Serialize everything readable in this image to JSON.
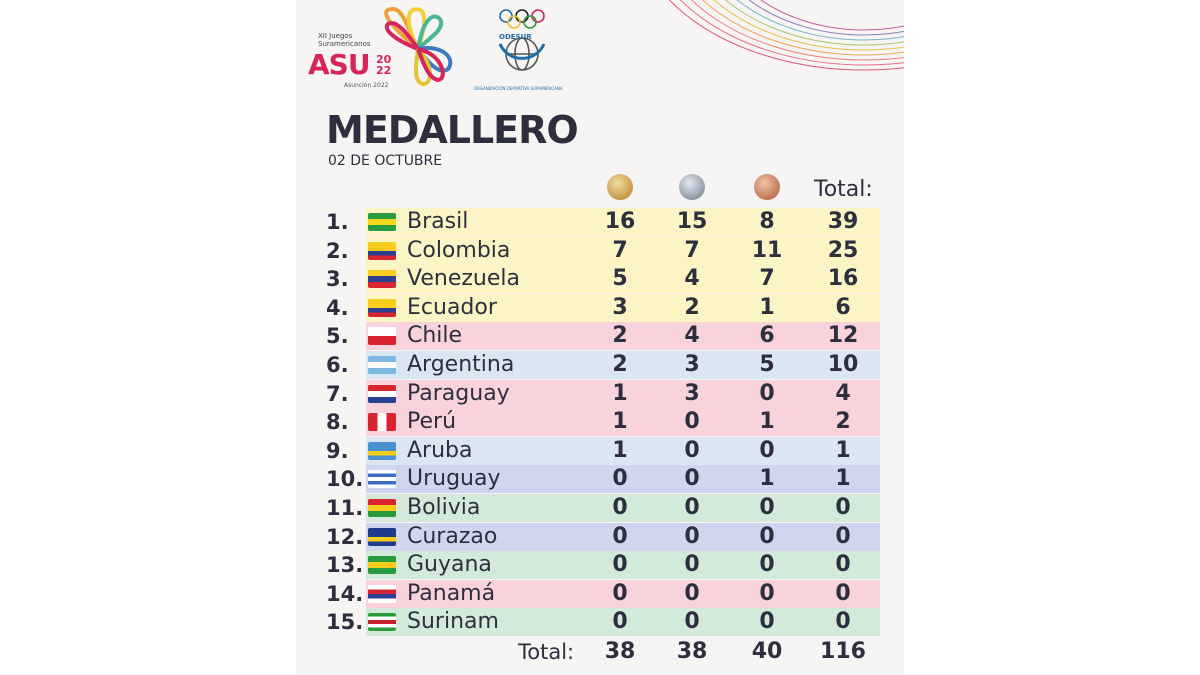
{
  "header": {
    "logo_asu": {
      "edition": "XII Juegos",
      "name": "Suramericanos",
      "brand": "ASU",
      "year_top": "20",
      "year_bottom": "22",
      "city": "Asunción 2022"
    },
    "logo_odesur": {
      "label": "ODESUR",
      "ring": "ORGANIZACIÓN DEPORTIVA SURAMERICANA"
    },
    "title": "MEDALLERO",
    "date": "02 DE OCTUBRE"
  },
  "columns": {
    "gold": "gold-medal",
    "silver": "silver-medal",
    "bronze": "bronze-medal",
    "total_label": "Total:"
  },
  "rows": [
    {
      "rank": "1.",
      "country": "Brasil",
      "gold": "16",
      "silver": "15",
      "bronze": "8",
      "total": "39",
      "bg": "#fbf5c6",
      "flag": [
        "#2a9a3f",
        "#f5d71c",
        "#2a9a3f"
      ]
    },
    {
      "rank": "2.",
      "country": "Colombia",
      "gold": "7",
      "silver": "7",
      "bronze": "11",
      "total": "25",
      "bg": "#fbf5c6",
      "flag": [
        "#f7cc1a",
        "#f7cc1a",
        "#2b3f93",
        "#d8242f"
      ]
    },
    {
      "rank": "3.",
      "country": "Venezuela",
      "gold": "5",
      "silver": "4",
      "bronze": "7",
      "total": "16",
      "bg": "#fbf5c6",
      "flag": [
        "#f7cc1a",
        "#2b3f93",
        "#d8242f"
      ]
    },
    {
      "rank": "4.",
      "country": "Ecuador",
      "gold": "3",
      "silver": "2",
      "bronze": "1",
      "total": "6",
      "bg": "#fbf5c6",
      "flag": [
        "#f7cc1a",
        "#f7cc1a",
        "#2b3f93",
        "#d8242f"
      ]
    },
    {
      "rank": "5.",
      "country": "Chile",
      "gold": "2",
      "silver": "4",
      "bronze": "6",
      "total": "12",
      "bg": "#f8d3db",
      "flag": [
        "#ffffff",
        "#d8242f"
      ]
    },
    {
      "rank": "6.",
      "country": "Argentina",
      "gold": "2",
      "silver": "3",
      "bronze": "5",
      "total": "10",
      "bg": "#dae7f3",
      "flag": [
        "#7cb8e2",
        "#ffffff",
        "#7cb8e2"
      ]
    },
    {
      "rank": "7.",
      "country": "Paraguay",
      "gold": "1",
      "silver": "3",
      "bronze": "0",
      "total": "4",
      "bg": "#f8d3db",
      "flag": [
        "#d8242f",
        "#ffffff",
        "#2b3f93"
      ]
    },
    {
      "rank": "8.",
      "country": "Perú",
      "gold": "1",
      "silver": "0",
      "bronze": "1",
      "total": "2",
      "bg": "#f8d3db",
      "flag": [
        "#d8242f",
        "#ffffff",
        "#d8242f"
      ],
      "vertical": true
    },
    {
      "rank": "9.",
      "country": "Aruba",
      "gold": "1",
      "silver": "0",
      "bronze": "0",
      "total": "1",
      "bg": "#dae7f3",
      "flag": [
        "#4a8fd0",
        "#4a8fd0",
        "#f7cc1a",
        "#4a8fd0"
      ]
    },
    {
      "rank": "10.",
      "country": "Uruguay",
      "gold": "0",
      "silver": "0",
      "bronze": "1",
      "total": "1",
      "bg": "#cfd6ee",
      "flag": [
        "#ffffff",
        "#3b6cc0",
        "#ffffff",
        "#3b6cc0",
        "#ffffff"
      ]
    },
    {
      "rank": "11.",
      "country": "Bolivia",
      "gold": "0",
      "silver": "0",
      "bronze": "0",
      "total": "0",
      "bg": "#d3eadb",
      "flag": [
        "#d8242f",
        "#f7cc1a",
        "#2a9a3f"
      ]
    },
    {
      "rank": "12.",
      "country": "Curazao",
      "gold": "0",
      "silver": "0",
      "bronze": "0",
      "total": "0",
      "bg": "#cfd6ee",
      "flag": [
        "#1e3a8a",
        "#1e3a8a",
        "#f7cc1a",
        "#1e3a8a"
      ]
    },
    {
      "rank": "13.",
      "country": "Guyana",
      "gold": "0",
      "silver": "0",
      "bronze": "0",
      "total": "0",
      "bg": "#d3eadb",
      "flag": [
        "#2a9a3f",
        "#f7cc1a",
        "#2a9a3f"
      ]
    },
    {
      "rank": "14.",
      "country": "Panamá",
      "gold": "0",
      "silver": "0",
      "bronze": "0",
      "total": "0",
      "bg": "#f8d3db",
      "flag": [
        "#ffffff",
        "#d8242f",
        "#2b3f93",
        "#ffffff"
      ]
    },
    {
      "rank": "15.",
      "country": "Surinam",
      "gold": "0",
      "silver": "0",
      "bronze": "0",
      "total": "0",
      "bg": "#d3eadb",
      "flag": [
        "#2a9a3f",
        "#ffffff",
        "#c8202e",
        "#ffffff",
        "#2a9a3f"
      ]
    }
  ],
  "totals": {
    "label": "Total:",
    "gold": "38",
    "silver": "38",
    "bronze": "40",
    "total": "116"
  }
}
